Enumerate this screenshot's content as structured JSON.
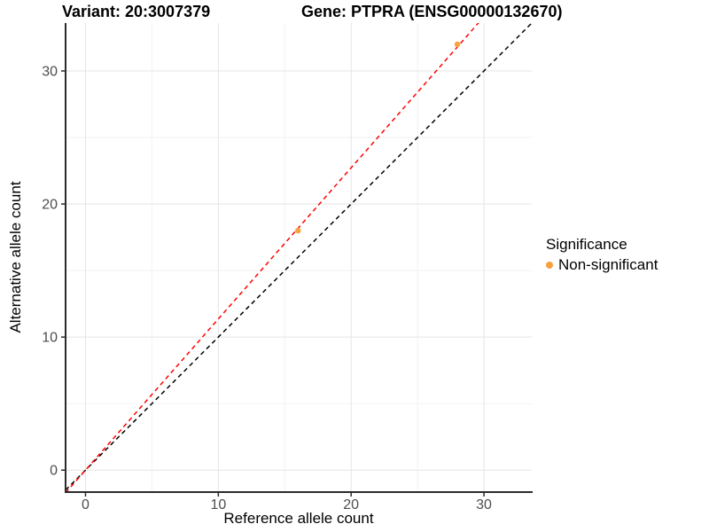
{
  "titles": {
    "variant": "Variant: 20:3007379",
    "gene": "Gene: PTPRA (ENSG00000132670)"
  },
  "axes": {
    "x_label": "Reference allele count",
    "y_label": "Alternative allele count"
  },
  "legend": {
    "title": "Significance",
    "items": [
      {
        "label": "Non-significant",
        "color": "#F9A03F"
      }
    ]
  },
  "chart_data": {
    "type": "scatter",
    "title_left": "Variant: 20:3007379",
    "title_right": "Gene: PTPRA (ENSG00000132670)",
    "xlabel": "Reference allele count",
    "ylabel": "Alternative allele count",
    "xlim": [
      -1.5,
      33.6
    ],
    "ylim": [
      -1.65,
      33.6
    ],
    "x_ticks": [
      0,
      10,
      20,
      30
    ],
    "y_ticks": [
      0,
      10,
      20,
      30
    ],
    "x_minor_ticks": [
      5,
      15,
      25
    ],
    "y_minor_ticks": [
      5,
      15,
      25
    ],
    "grid": {
      "major_color": "#E5E5E5",
      "minor_color": "#F2F2F2",
      "background": "#FFFFFF"
    },
    "series": [
      {
        "name": "Non-significant",
        "color": "#F9A03F",
        "points": [
          {
            "x": 16,
            "y": 18,
            "significance": "Non-significant"
          },
          {
            "x": 28,
            "y": 32,
            "significance": "Non-significant"
          }
        ]
      }
    ],
    "lines": [
      {
        "name": "identity",
        "slope": 1.0,
        "intercept": 0,
        "color": "#000000",
        "style": "dashed"
      },
      {
        "name": "fitted-ratio",
        "slope": 1.136,
        "intercept": 0,
        "color": "#FF0000",
        "style": "dashed"
      }
    ],
    "legend_position": "right",
    "axis_color": "#2B2B2B",
    "tick_label_color": "#4D4D4D"
  }
}
